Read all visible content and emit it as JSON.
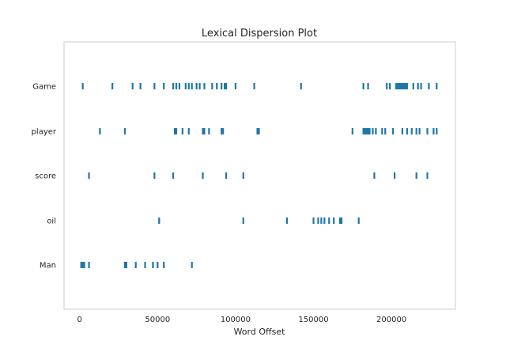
{
  "chart_data": {
    "type": "scatter",
    "title": "Lexical Dispersion Plot",
    "xlabel": "Word Offset",
    "ylabel": "",
    "xlim": [
      -10000,
      241000
    ],
    "xticks": [
      0,
      50000,
      100000,
      150000,
      200000
    ],
    "xtick_labels": [
      "0",
      "50000",
      "100000",
      "150000",
      "200000"
    ],
    "grid": false,
    "marker_color": "#1f77a8",
    "categories": [
      "Game",
      "player",
      "score",
      "oil",
      "Man"
    ],
    "series": [
      {
        "values": [
          2000,
          21000,
          34000,
          39000,
          48000,
          54000,
          60000,
          62000,
          64000,
          68000,
          70000,
          72000,
          75000,
          77000,
          80000,
          85000,
          88000,
          91000,
          93000,
          94000,
          100000,
          112000,
          142000,
          182000,
          185000,
          197000,
          199000,
          203000,
          204000,
          205000,
          206000,
          207000,
          208000,
          209000,
          210000,
          214000,
          217000,
          219000,
          224000,
          229000
        ]
      },
      {
        "values": [
          13000,
          29000,
          61000,
          62000,
          66000,
          70000,
          79000,
          80000,
          83000,
          91000,
          92000,
          114000,
          115000,
          175000,
          182000,
          183000,
          184000,
          185000,
          186000,
          188000,
          190000,
          194000,
          196000,
          201000,
          207000,
          210000,
          213000,
          216000,
          218000,
          223000,
          227000,
          229000
        ]
      },
      {
        "values": [
          6000,
          48000,
          60000,
          79000,
          94000,
          105000,
          189000,
          202000,
          216000,
          223000
        ]
      },
      {
        "values": [
          51000,
          105000,
          133000,
          150000,
          153000,
          155000,
          157000,
          160000,
          163000,
          167000,
          168000,
          179000
        ]
      },
      {
        "values": [
          1000,
          2000,
          3000,
          6000,
          29000,
          30000,
          36000,
          42000,
          47000,
          50000,
          54000,
          72000
        ]
      }
    ]
  }
}
